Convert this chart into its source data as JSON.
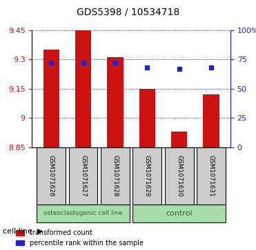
{
  "title": "GDS5398 / 10534718",
  "samples": [
    "GSM1071626",
    "GSM1071627",
    "GSM1071628",
    "GSM1071629",
    "GSM1071630",
    "GSM1071631"
  ],
  "transformed_counts": [
    9.35,
    9.45,
    9.31,
    9.15,
    8.93,
    9.12
  ],
  "percentile_ranks": [
    72,
    72,
    72,
    68,
    67,
    68
  ],
  "y_min": 8.85,
  "y_max": 9.45,
  "y_ticks": [
    8.85,
    9.0,
    9.15,
    9.3,
    9.45
  ],
  "y_tick_labels": [
    "8.85",
    "9",
    "9.15",
    "9.3",
    "9.45"
  ],
  "right_y_ticks": [
    0,
    25,
    50,
    75,
    100
  ],
  "right_y_labels": [
    "0",
    "25",
    "50",
    "75",
    "100%"
  ],
  "bar_color": "#cc1111",
  "dot_color": "#2222cc",
  "group1_label": "osteoclastogenic cell line",
  "group2_label": "control",
  "group1_indices": [
    0,
    1,
    2
  ],
  "group2_indices": [
    3,
    4,
    5
  ],
  "group_bg_color": "#aaddaa",
  "sample_bg_color": "#cccccc",
  "bar_width": 0.5,
  "legend_bar_label": "transformed count",
  "legend_dot_label": "percentile rank within the sample",
  "cell_line_label": "cell line"
}
